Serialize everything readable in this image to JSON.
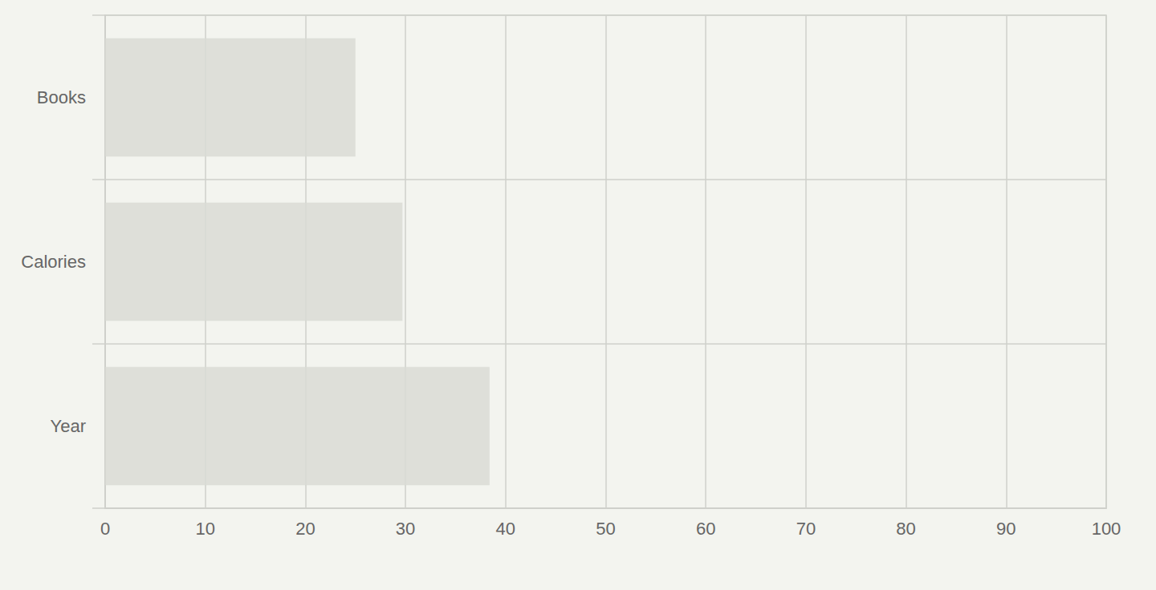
{
  "chart_data": {
    "type": "bar",
    "orientation": "horizontal",
    "categories": [
      "Books",
      "Calories",
      "Year"
    ],
    "values": [
      25,
      29.7,
      38.4
    ],
    "color": "#d9dad5",
    "xlim": [
      0,
      100
    ],
    "xticks": [
      0,
      10,
      20,
      30,
      40,
      50,
      60,
      70,
      80,
      90,
      100
    ],
    "grid": true
  }
}
